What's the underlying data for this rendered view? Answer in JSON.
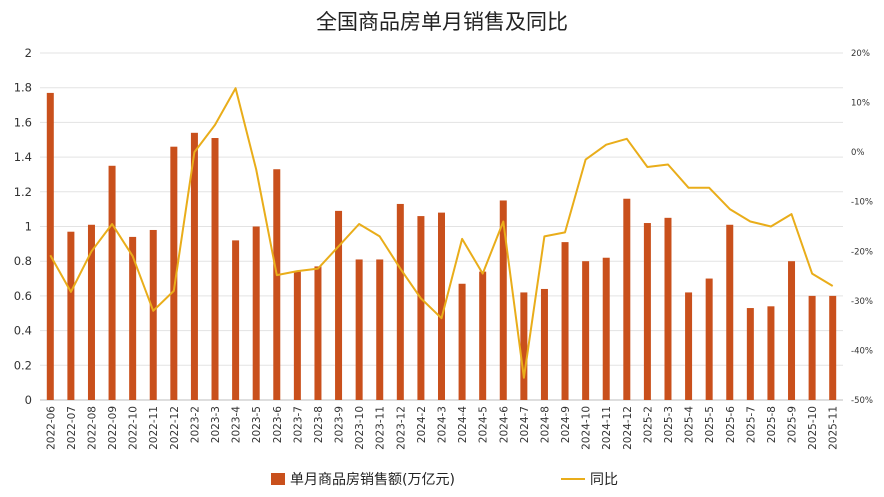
{
  "chart_data": {
    "type": "bar",
    "title": "全国商品房单月销售及同比",
    "categories": [
      "2022-06",
      "2022-07",
      "2022-08",
      "2022-09",
      "2022-10",
      "2022-11",
      "2022-12",
      "2023-2",
      "2023-3",
      "2023-4",
      "2023-5",
      "2023-6",
      "2023-7",
      "2023-8",
      "2023-9",
      "2023-10",
      "2023-11",
      "2023-12",
      "2024-2",
      "2024-3",
      "2024-4",
      "2024-5",
      "2024-6",
      "2024-7",
      "2024-8",
      "2024-9",
      "2024-10",
      "2024-11",
      "2024-12",
      "2025-2",
      "2025-3",
      "2025-4",
      "2025-5",
      "2025-6",
      "2025-7",
      "2025-8",
      "2025-9",
      "2025-10",
      "2025-11"
    ],
    "series": [
      {
        "name": "单月商品房销售额(万亿元)",
        "type": "bar",
        "axis": "left",
        "color": "#C9501C",
        "values": [
          1.77,
          0.97,
          1.01,
          1.35,
          0.94,
          0.98,
          1.46,
          1.54,
          1.51,
          0.92,
          1.0,
          1.33,
          0.74,
          0.77,
          1.09,
          0.81,
          0.81,
          1.13,
          1.06,
          1.08,
          0.67,
          0.74,
          1.15,
          0.62,
          0.64,
          0.91,
          0.8,
          0.82,
          1.16,
          1.02,
          1.05,
          0.62,
          0.7,
          1.01,
          0.53,
          0.54,
          0.8,
          0.6,
          0.6
        ]
      },
      {
        "name": "同比",
        "type": "line",
        "axis": "right",
        "color": "#E9AD1A",
        "values": [
          -20.8,
          -28.2,
          -20.0,
          -14.5,
          -21.0,
          -32.0,
          -28.0,
          0.0,
          5.5,
          12.9,
          -3.5,
          -24.8,
          -24.0,
          -23.5,
          -19.0,
          -14.5,
          -17.0,
          -23.5,
          -29.5,
          -33.5,
          -17.5,
          -24.5,
          -14.0,
          -45.5,
          -17.0,
          -16.2,
          -1.5,
          1.5,
          2.7,
          -3.0,
          -2.5,
          -7.2,
          -7.2,
          -11.5,
          -14.0,
          -15.0,
          -12.5,
          -24.5,
          -27.0
        ]
      }
    ],
    "ylim": [
      0,
      2
    ],
    "yticks": [
      "0",
      "0.2",
      "0.4",
      "0.6",
      "0.8",
      "1",
      "1.2",
      "1.4",
      "1.6",
      "1.8",
      "2"
    ],
    "y2lim": [
      -50,
      20
    ],
    "y2ticks": [
      "-50%",
      "-40%",
      "-30%",
      "-20%",
      "-10%",
      "0%",
      "10%",
      "20%"
    ],
    "grid": true,
    "legend": "bottom"
  }
}
